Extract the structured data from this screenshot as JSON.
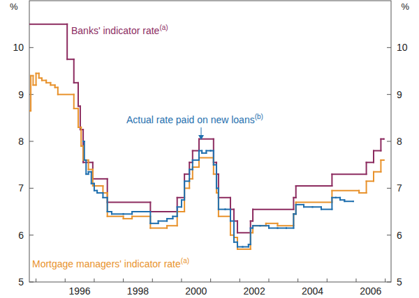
{
  "chart_data": {
    "type": "line",
    "ylabel": "%",
    "xlim": [
      1994.77,
      2007.2
    ],
    "ylim": [
      5,
      11
    ],
    "xticks": [
      {
        "value": 1996.5,
        "label": "1996"
      },
      {
        "value": 1998.5,
        "label": "1998"
      },
      {
        "value": 2000.5,
        "label": "2000"
      },
      {
        "value": 2002.5,
        "label": "2002"
      },
      {
        "value": 2004.5,
        "label": "2004"
      },
      {
        "value": 2006.5,
        "label": "2006"
      }
    ],
    "yticks": [
      5,
      6,
      7,
      8,
      9,
      10
    ],
    "grid": false,
    "series": [
      {
        "name": "Banks' indicator rate",
        "color": "#8c2b5f",
        "line_style": "step",
        "x": [
          1994.77,
          1996.07,
          1996.3,
          1996.45,
          1996.52,
          1996.62,
          1996.95,
          1997.45,
          1998.93,
          1999.85,
          2000.1,
          2000.27,
          2000.38,
          2000.6,
          2001.1,
          2001.2,
          2001.27,
          2001.68,
          2001.8,
          2001.92,
          2002.37,
          2002.45,
          2003.85,
          2003.93,
          2005.17,
          2006.35,
          2006.6,
          2006.85,
          2006.95
        ],
        "values": [
          10.5,
          9.75,
          9.25,
          8.75,
          8.25,
          7.55,
          7.2,
          6.7,
          6.5,
          6.8,
          7.3,
          7.55,
          7.8,
          8.05,
          7.55,
          7.3,
          6.8,
          6.55,
          6.3,
          6.05,
          6.3,
          6.55,
          6.8,
          7.05,
          7.3,
          7.55,
          7.8,
          8.05,
          8.05
        ]
      },
      {
        "name": "Mortgage managers' indicator rate",
        "color": "#e8922c",
        "line_style": "step",
        "x": [
          1994.77,
          1994.82,
          1994.9,
          1995.0,
          1995.1,
          1995.2,
          1995.35,
          1995.5,
          1995.65,
          1995.75,
          1996.3,
          1996.45,
          1996.55,
          1996.62,
          1996.8,
          1996.95,
          1997.3,
          1997.45,
          1998.0,
          1998.3,
          1998.93,
          1999.5,
          1999.85,
          2000.1,
          2000.27,
          2000.38,
          2000.6,
          2001.1,
          2001.2,
          2001.27,
          2001.68,
          2001.8,
          2001.92,
          2002.37,
          2002.45,
          2002.9,
          2003.3,
          2003.85,
          2003.93,
          2005.17,
          2006.1,
          2006.35,
          2006.6,
          2006.85,
          2006.95
        ],
        "values": [
          8.65,
          9.4,
          9.2,
          9.45,
          9.35,
          9.3,
          9.25,
          9.2,
          9.15,
          9.0,
          8.7,
          8.3,
          7.9,
          7.6,
          7.4,
          7.05,
          6.9,
          6.4,
          6.35,
          6.4,
          6.15,
          6.2,
          6.5,
          7.0,
          7.2,
          7.45,
          7.65,
          7.3,
          6.9,
          6.4,
          6.0,
          5.95,
          5.7,
          6.05,
          6.2,
          6.25,
          6.2,
          6.45,
          6.7,
          6.95,
          6.9,
          7.15,
          7.35,
          7.6,
          7.6
        ]
      },
      {
        "name": "Actual rate paid on new loans",
        "color": "#1f6fae",
        "line_style": "step",
        "x": [
          1996.62,
          1996.66,
          1996.72,
          1996.8,
          1996.9,
          1997.0,
          1997.1,
          1997.3,
          1997.45,
          1997.6,
          1998.0,
          1998.3,
          1998.6,
          1998.93,
          1999.2,
          1999.5,
          1999.7,
          1999.85,
          2000.0,
          2000.1,
          2000.27,
          2000.38,
          2000.6,
          2000.7,
          2000.85,
          2001.0,
          2001.1,
          2001.2,
          2001.27,
          2001.5,
          2001.68,
          2001.8,
          2001.92,
          2002.1,
          2002.3,
          2002.37,
          2002.45,
          2002.7,
          2003.0,
          2003.3,
          2003.6,
          2003.85,
          2003.93,
          2004.2,
          2004.5,
          2004.8,
          2005.17,
          2005.3,
          2005.45,
          2005.6,
          2005.9
        ],
        "values": [
          8.0,
          7.6,
          7.3,
          7.35,
          7.1,
          6.95,
          6.9,
          6.8,
          6.5,
          6.45,
          6.45,
          6.5,
          6.5,
          6.25,
          6.3,
          6.35,
          6.4,
          6.6,
          6.75,
          7.15,
          7.4,
          7.6,
          7.8,
          7.75,
          7.8,
          7.8,
          7.5,
          7.0,
          6.55,
          6.55,
          6.3,
          5.85,
          5.75,
          5.75,
          5.8,
          6.15,
          6.2,
          6.2,
          6.15,
          6.15,
          6.15,
          6.45,
          6.65,
          6.6,
          6.6,
          6.55,
          6.8,
          6.8,
          6.75,
          6.72,
          6.72
        ]
      }
    ],
    "annotations": [
      {
        "text": "Banks' indicator rate",
        "footnote": "(a)"
      },
      {
        "text": "Mortgage managers' indicator rate",
        "footnote": "(a)"
      },
      {
        "text": "Actual rate paid on new loans",
        "footnote": "(b)"
      }
    ]
  }
}
